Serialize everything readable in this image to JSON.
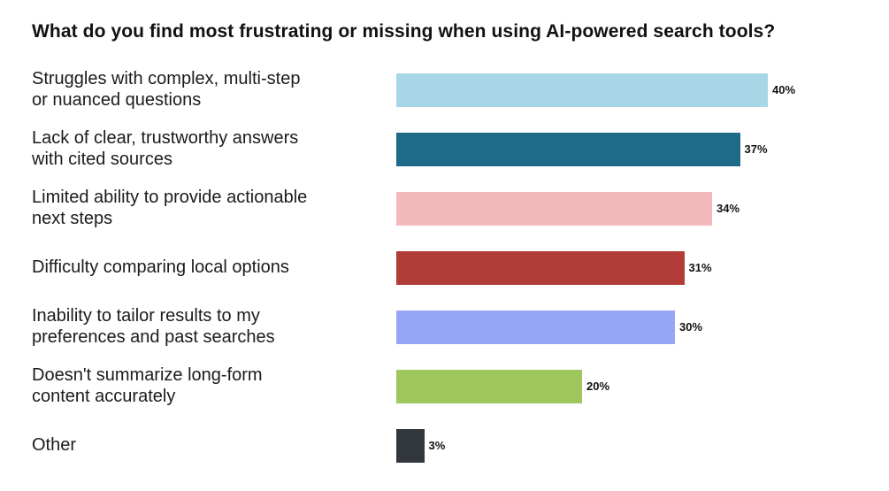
{
  "title": "What do you find most frustrating or missing when using AI-powered search tools?",
  "chart_data": {
    "type": "bar",
    "orientation": "horizontal",
    "title": "What do you find most frustrating or missing when using AI-powered search tools?",
    "categories": [
      "Struggles with complex, multi-step\nor nuanced questions",
      "Lack of clear, trustworthy answers\nwith cited sources",
      "Limited ability to provide actionable\nnext steps",
      "Difficulty comparing local options",
      "Inability to tailor results to my\npreferences and past searches",
      "Doesn't summarize long-form\ncontent accurately",
      "Other"
    ],
    "values": [
      40,
      37,
      34,
      31,
      30,
      20,
      3
    ],
    "value_labels": [
      "40%",
      "37%",
      "34%",
      "31%",
      "30%",
      "20%",
      "3%"
    ],
    "value_suffix": "%",
    "bar_colors": [
      "#a7d6e6",
      "#1e6b89",
      "#f3b9ba",
      "#b23c37",
      "#95a6f8",
      "#a0c75d",
      "#32373e"
    ],
    "xlim": [
      0,
      40
    ],
    "grid": false,
    "legend": false,
    "value_label_position": "outside-end",
    "background": "#ffffff"
  }
}
